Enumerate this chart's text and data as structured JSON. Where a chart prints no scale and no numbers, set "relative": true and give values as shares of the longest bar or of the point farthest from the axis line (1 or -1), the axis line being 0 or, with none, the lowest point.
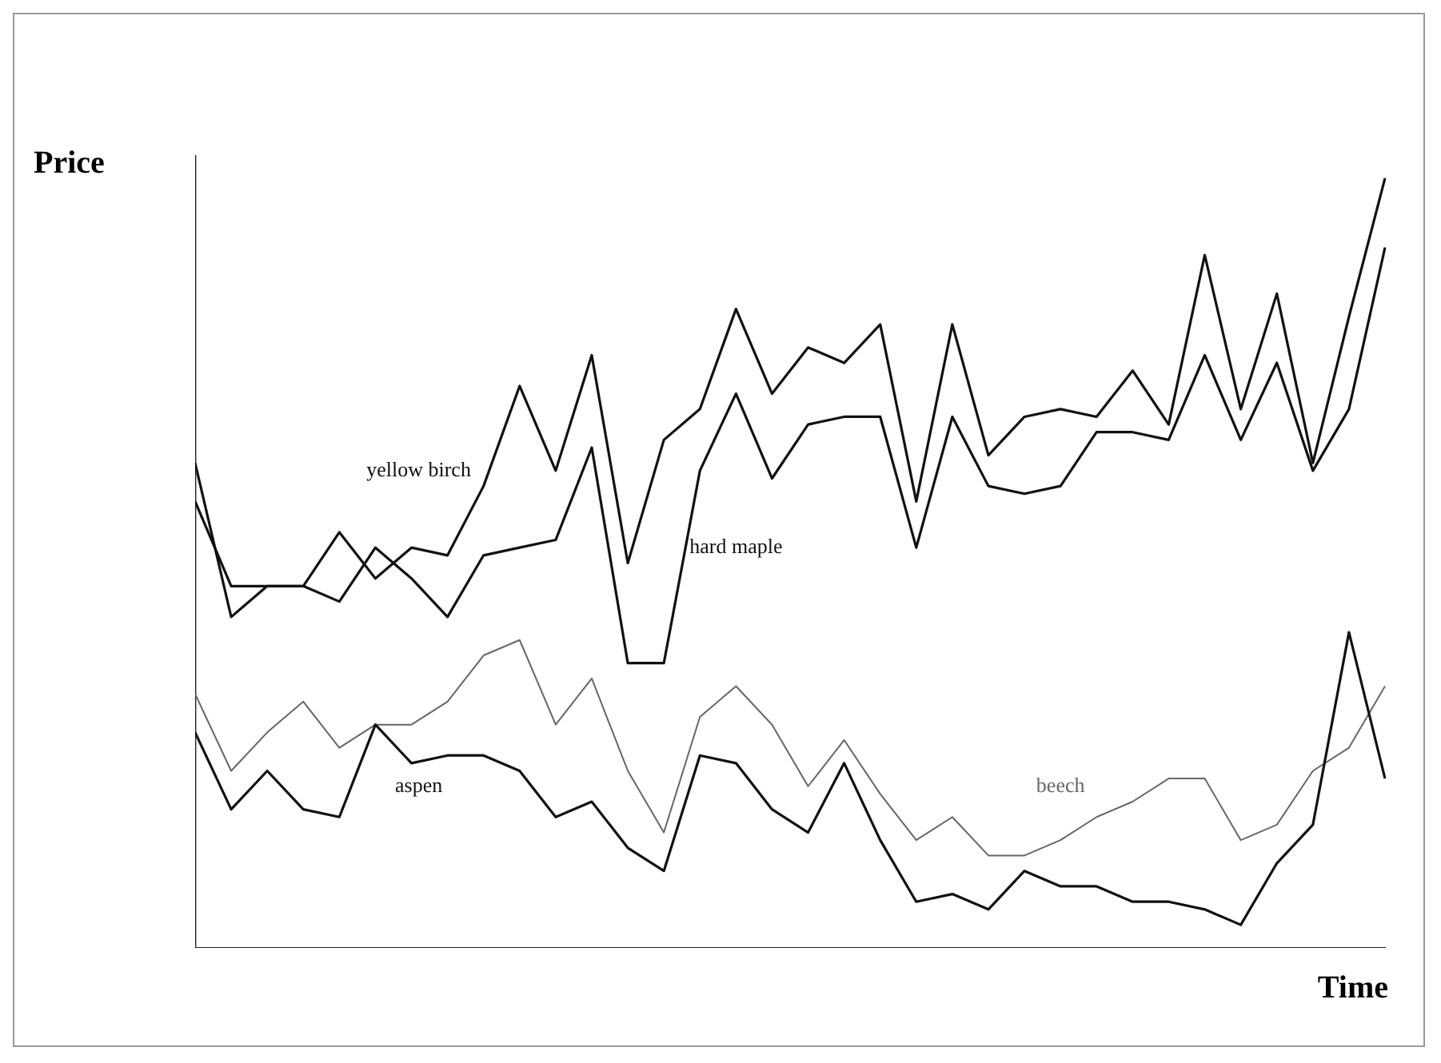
{
  "chart_data": {
    "type": "line",
    "relative": true,
    "xlabel": "Time",
    "ylabel": "Price",
    "grid": false,
    "legend": false,
    "marker": "none",
    "line_style": "solid",
    "categories": [
      null,
      null,
      null,
      null,
      null,
      null,
      null,
      null,
      null,
      null,
      null,
      null,
      null,
      null,
      null,
      null,
      null,
      null,
      null,
      null,
      null,
      null,
      null,
      null,
      null,
      null,
      null,
      null,
      null,
      null,
      null,
      null,
      null,
      null
    ],
    "series": [
      {
        "name": "yellow birch",
        "color": "#111111",
        "values": [
          0.63,
          0.43,
          0.47,
          0.47,
          0.54,
          0.48,
          0.52,
          0.51,
          0.6,
          0.73,
          0.62,
          0.77,
          0.5,
          0.66,
          0.7,
          0.83,
          0.72,
          0.78,
          0.76,
          0.81,
          0.58,
          0.81,
          0.64,
          0.69,
          0.7,
          0.69,
          0.75,
          0.68,
          0.9,
          0.7,
          0.85,
          0.63,
          0.82,
          1.0
        ]
      },
      {
        "name": "hard maple",
        "color": "#111111",
        "values": [
          0.58,
          0.47,
          0.47,
          0.47,
          0.45,
          0.52,
          0.48,
          0.43,
          0.51,
          0.52,
          0.53,
          0.65,
          0.37,
          0.37,
          0.62,
          0.72,
          0.61,
          0.68,
          0.69,
          0.69,
          0.52,
          0.69,
          0.6,
          0.59,
          0.6,
          0.67,
          0.67,
          0.66,
          0.77,
          0.66,
          0.76,
          0.62,
          0.7,
          0.91
        ]
      },
      {
        "name": "aspen",
        "color": "#111111",
        "values": [
          0.28,
          0.18,
          0.23,
          0.18,
          0.17,
          0.29,
          0.24,
          0.25,
          0.25,
          0.23,
          0.17,
          0.19,
          0.13,
          0.1,
          0.25,
          0.24,
          0.18,
          0.15,
          0.24,
          0.14,
          0.06,
          0.07,
          0.05,
          0.1,
          0.08,
          0.08,
          0.06,
          0.06,
          0.05,
          0.03,
          0.11,
          0.16,
          0.41,
          0.22
        ]
      },
      {
        "name": "beech",
        "color": "#666666",
        "values": [
          0.33,
          0.23,
          0.28,
          0.32,
          0.26,
          0.29,
          0.29,
          0.32,
          0.38,
          0.4,
          0.29,
          0.35,
          0.23,
          0.15,
          0.3,
          0.34,
          0.29,
          0.21,
          0.27,
          0.2,
          0.14,
          0.17,
          0.12,
          0.12,
          0.14,
          0.17,
          0.19,
          0.22,
          0.22,
          0.14,
          0.16,
          0.23,
          0.26,
          0.34
        ]
      }
    ]
  }
}
